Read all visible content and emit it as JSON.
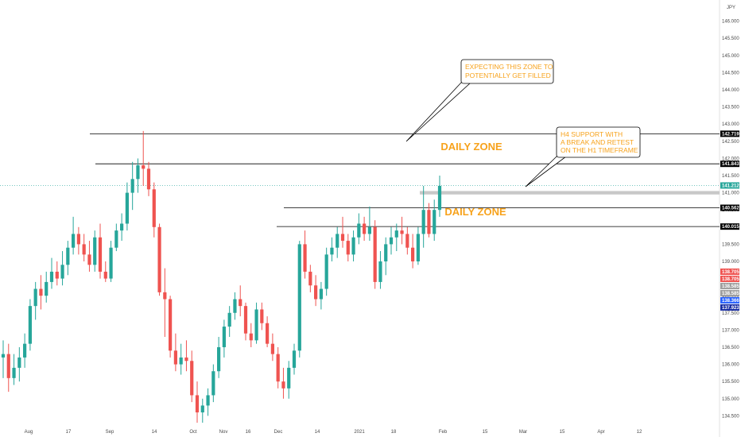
{
  "symbol_label": "JPY",
  "colors": {
    "up": "#26a69a",
    "down": "#ef5350",
    "zone_label": "#f7a21b",
    "level_line": "#000000",
    "support_band": "#c8c8c8",
    "last_price_line": "#26a69a"
  },
  "chart_data": {
    "type": "candlestick",
    "title": "",
    "x_ticks": [
      "Aug",
      "17",
      "Sep",
      "14",
      "Oct",
      "Nov",
      "16",
      "Dec",
      "14",
      "2021",
      "18",
      "Feb",
      "15",
      "Mar",
      "15",
      "Apr",
      "12"
    ],
    "y_ticks": [
      "146.000",
      "145.500",
      "145.000",
      "144.500",
      "144.000",
      "143.500",
      "143.000",
      "142.500",
      "142.000",
      "141.500",
      "141.000",
      "140.500",
      "140.000",
      "139.500",
      "139.000",
      "138.500",
      "138.000",
      "137.500",
      "137.000",
      "136.500",
      "136.000",
      "135.500",
      "135.000",
      "134.500"
    ],
    "ylim": [
      134.3,
      146.2
    ],
    "candles": [
      [
        136.2,
        136.7,
        135.6,
        136.3
      ],
      [
        136.3,
        136.6,
        135.2,
        135.6
      ],
      [
        135.6,
        136.3,
        135.4,
        135.9
      ],
      [
        135.9,
        136.5,
        135.5,
        136.2
      ],
      [
        136.2,
        136.9,
        135.9,
        136.6
      ],
      [
        136.6,
        137.9,
        136.4,
        137.7
      ],
      [
        137.7,
        138.4,
        137.3,
        138.2
      ],
      [
        138.2,
        138.6,
        137.6,
        138.0
      ],
      [
        138.0,
        138.7,
        137.8,
        138.4
      ],
      [
        138.4,
        139.1,
        138.2,
        138.7
      ],
      [
        138.7,
        139.0,
        138.3,
        138.5
      ],
      [
        138.5,
        139.3,
        138.3,
        138.9
      ],
      [
        138.9,
        139.6,
        138.6,
        139.4
      ],
      [
        139.4,
        140.3,
        139.2,
        139.8
      ],
      [
        139.8,
        140.0,
        139.2,
        139.5
      ],
      [
        139.5,
        139.8,
        139.0,
        139.2
      ],
      [
        139.2,
        139.6,
        138.7,
        138.9
      ],
      [
        138.9,
        139.9,
        138.7,
        139.7
      ],
      [
        139.7,
        140.1,
        138.5,
        138.7
      ],
      [
        138.7,
        139.0,
        138.4,
        138.5
      ],
      [
        138.5,
        139.6,
        138.4,
        139.4
      ],
      [
        139.4,
        140.1,
        139.3,
        139.9
      ],
      [
        139.9,
        140.4,
        139.6,
        140.1
      ],
      [
        140.1,
        141.3,
        139.9,
        141.0
      ],
      [
        141.0,
        141.9,
        140.5,
        141.4
      ],
      [
        141.4,
        142.0,
        141.0,
        141.8
      ],
      [
        141.8,
        142.8,
        141.2,
        141.7
      ],
      [
        141.7,
        141.9,
        140.9,
        141.1
      ],
      [
        141.1,
        141.3,
        139.7,
        140.0
      ],
      [
        140.0,
        140.1,
        138.0,
        138.1
      ],
      [
        138.1,
        138.8,
        136.8,
        137.9
      ],
      [
        137.9,
        138.0,
        136.2,
        136.4
      ],
      [
        136.4,
        136.9,
        135.8,
        136.0
      ],
      [
        136.0,
        136.6,
        135.7,
        136.2
      ],
      [
        136.2,
        136.7,
        135.8,
        136.1
      ],
      [
        136.1,
        136.4,
        134.9,
        135.1
      ],
      [
        135.1,
        135.5,
        134.3,
        134.6
      ],
      [
        134.6,
        135.0,
        134.3,
        134.8
      ],
      [
        134.8,
        135.3,
        134.5,
        135.1
      ],
      [
        135.1,
        136.0,
        134.9,
        135.8
      ],
      [
        135.8,
        136.8,
        135.6,
        136.5
      ],
      [
        136.5,
        137.3,
        136.2,
        137.1
      ],
      [
        137.1,
        137.7,
        136.8,
        137.5
      ],
      [
        137.5,
        138.1,
        137.3,
        137.9
      ],
      [
        137.9,
        138.3,
        137.4,
        137.7
      ],
      [
        137.7,
        137.8,
        136.7,
        136.9
      ],
      [
        136.9,
        137.2,
        136.5,
        136.7
      ],
      [
        136.7,
        137.8,
        136.6,
        137.6
      ],
      [
        137.6,
        137.8,
        137.0,
        137.2
      ],
      [
        137.2,
        137.4,
        136.5,
        136.6
      ],
      [
        136.6,
        136.9,
        136.1,
        136.3
      ],
      [
        136.3,
        136.5,
        135.3,
        135.5
      ],
      [
        135.5,
        135.9,
        135.0,
        135.3
      ],
      [
        135.3,
        136.1,
        135.0,
        135.9
      ],
      [
        135.9,
        136.6,
        135.7,
        136.4
      ],
      [
        136.4,
        139.6,
        136.2,
        139.5
      ],
      [
        139.5,
        139.9,
        138.5,
        138.7
      ],
      [
        138.7,
        138.9,
        138.1,
        138.3
      ],
      [
        138.3,
        138.6,
        137.7,
        137.9
      ],
      [
        137.9,
        138.4,
        137.6,
        138.2
      ],
      [
        138.2,
        139.4,
        138.0,
        139.2
      ],
      [
        139.2,
        139.7,
        139.0,
        139.4
      ],
      [
        139.4,
        140.0,
        139.1,
        139.8
      ],
      [
        139.8,
        140.3,
        139.4,
        139.6
      ],
      [
        139.6,
        139.8,
        139.0,
        139.2
      ],
      [
        139.2,
        139.9,
        139.0,
        139.7
      ],
      [
        139.7,
        140.4,
        139.5,
        140.1
      ],
      [
        140.1,
        140.3,
        139.6,
        139.8
      ],
      [
        139.8,
        140.6,
        139.6,
        140.0
      ],
      [
        140.0,
        140.2,
        138.2,
        138.4
      ],
      [
        138.4,
        139.3,
        138.2,
        139.0
      ],
      [
        139.0,
        139.7,
        138.6,
        139.5
      ],
      [
        139.5,
        140.0,
        139.2,
        139.7
      ],
      [
        139.7,
        140.1,
        139.3,
        139.9
      ],
      [
        139.9,
        140.3,
        139.5,
        139.8
      ],
      [
        139.8,
        140.0,
        139.2,
        139.4
      ],
      [
        139.4,
        139.8,
        138.8,
        139.0
      ],
      [
        139.0,
        140.0,
        138.9,
        139.8
      ],
      [
        139.8,
        141.2,
        139.4,
        140.5
      ],
      [
        140.5,
        140.7,
        139.7,
        139.8
      ],
      [
        139.8,
        140.8,
        139.6,
        140.5
      ],
      [
        140.5,
        141.5,
        140.3,
        141.2
      ]
    ],
    "levels": [
      {
        "price": 142.719,
        "label": "142.719"
      },
      {
        "price": 141.843,
        "label": "141.843"
      },
      {
        "price": 140.562,
        "label": "140.562"
      },
      {
        "price": 140.015,
        "label": "140.015"
      }
    ],
    "last_price": {
      "price": 141.212,
      "label": "141.212"
    },
    "support_band": {
      "low": 140.95,
      "high": 141.05
    },
    "right_tags": [
      {
        "label": "138.705",
        "color": "#ef5350"
      },
      {
        "label": "138.705",
        "color": "#ef5350"
      },
      {
        "label": "138.585",
        "color": "#9e9e9e"
      },
      {
        "label": "138.585",
        "color": "#9e9e9e"
      },
      {
        "label": "138.366",
        "color": "#2962ff"
      },
      {
        "label": "137.923",
        "color": "#1a2fa3"
      }
    ],
    "annotations": {
      "daily_zone_top": "DAILY ZONE",
      "daily_zone_bottom": "DAILY ZONE",
      "callout_fill_line1": "EXPECTING THIS ZONE TO",
      "callout_fill_line2": "POTENTIALLY GET FILLED",
      "callout_h4_line1": "H4 SUPPORT WITH",
      "callout_h4_line2": "A BREAK AND RETEST",
      "callout_h4_line3": "ON THE H1 TIMEFRAME"
    }
  }
}
